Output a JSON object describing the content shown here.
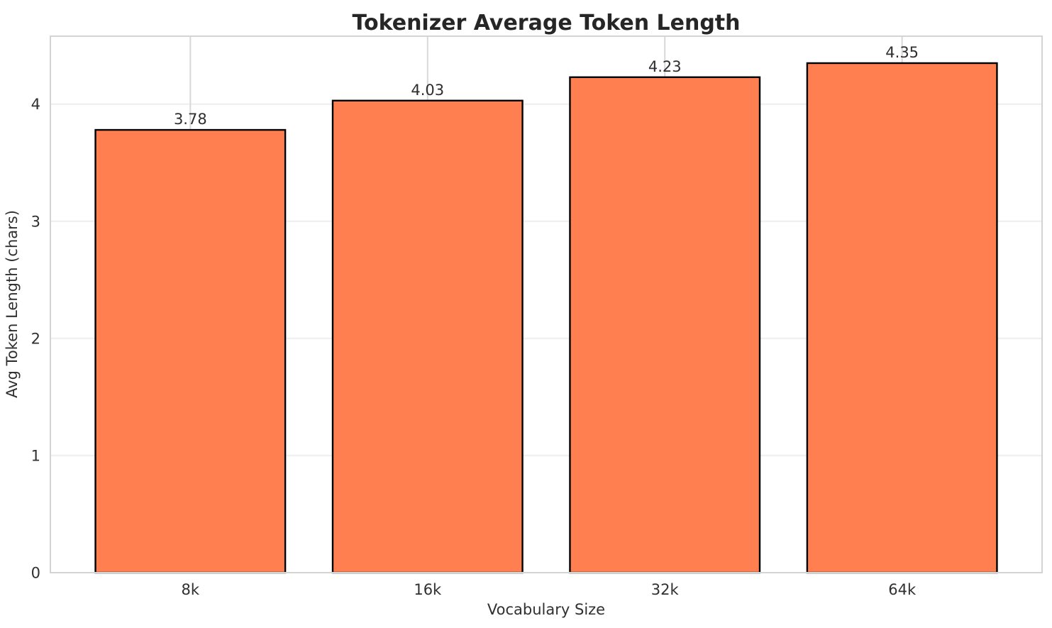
{
  "figure": {
    "background": "#ffffff"
  },
  "chart_data": {
    "type": "bar",
    "title": "Tokenizer Average Token Length",
    "xlabel": "Vocabulary Size",
    "ylabel": "Avg Token Length (chars)",
    "categories": [
      "8k",
      "16k",
      "32k",
      "64k"
    ],
    "values": [
      3.78,
      4.03,
      4.23,
      4.35
    ],
    "value_labels": [
      "3.78",
      "4.03",
      "4.23",
      "4.35"
    ],
    "yticks": [
      "0",
      "1",
      "2",
      "3",
      "4"
    ],
    "ytick_values": [
      0,
      1,
      2,
      3,
      4
    ],
    "ylim": [
      0,
      4.58
    ],
    "xlim": [
      -0.59,
      3.59
    ],
    "bar_width": 0.8,
    "grid": true,
    "legend_position": "none",
    "colors": {
      "bar_fill": "#FF7F50",
      "bar_edge": "#000000",
      "spine": "#d4d4d4",
      "grid_vertical": "#d8d8d8",
      "grid_horizontal": "#f0f0f0",
      "title_text": "#262626",
      "tick_text": "#303030",
      "value_text": "#2e2e2e"
    }
  }
}
